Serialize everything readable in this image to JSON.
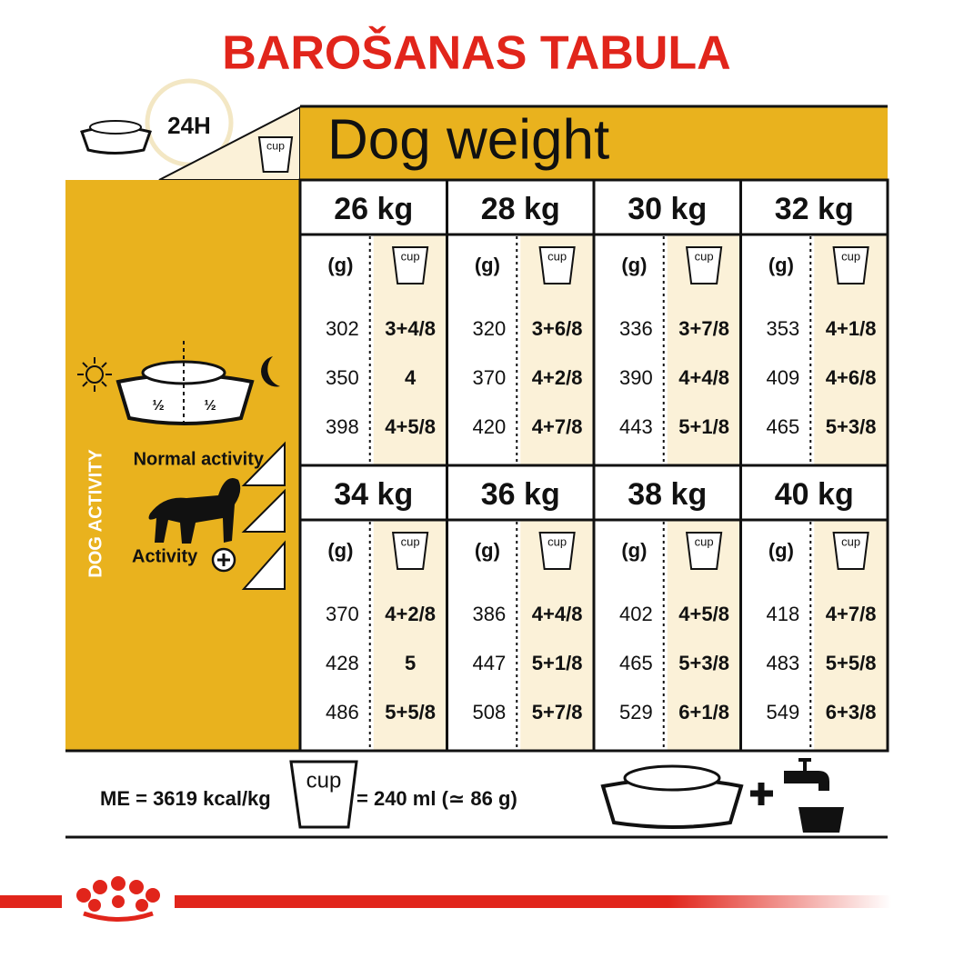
{
  "title": "BAROŠANAS TABULA",
  "header": {
    "period": "24H",
    "heading": "Dog weight"
  },
  "cup_label": "cup",
  "activity": {
    "side_label": "DOG ACTIVITY",
    "half_label": "½",
    "levels": [
      "Normal activity",
      "Activity"
    ]
  },
  "table": {
    "gram_label": "(g)",
    "blocks": [
      {
        "weight": "26 kg",
        "rows": [
          [
            "302",
            "3+4/8"
          ],
          [
            "350",
            "4"
          ],
          [
            "398",
            "4+5/8"
          ]
        ]
      },
      {
        "weight": "28 kg",
        "rows": [
          [
            "320",
            "3+6/8"
          ],
          [
            "370",
            "4+2/8"
          ],
          [
            "420",
            "4+7/8"
          ]
        ]
      },
      {
        "weight": "30 kg",
        "rows": [
          [
            "336",
            "3+7/8"
          ],
          [
            "390",
            "4+4/8"
          ],
          [
            "443",
            "5+1/8"
          ]
        ]
      },
      {
        "weight": "32 kg",
        "rows": [
          [
            "353",
            "4+1/8"
          ],
          [
            "409",
            "4+6/8"
          ],
          [
            "465",
            "5+3/8"
          ]
        ]
      },
      {
        "weight": "34 kg",
        "rows": [
          [
            "370",
            "4+2/8"
          ],
          [
            "428",
            "5"
          ],
          [
            "486",
            "5+5/8"
          ]
        ]
      },
      {
        "weight": "36 kg",
        "rows": [
          [
            "386",
            "4+4/8"
          ],
          [
            "447",
            "5+1/8"
          ],
          [
            "508",
            "5+7/8"
          ]
        ]
      },
      {
        "weight": "38 kg",
        "rows": [
          [
            "402",
            "4+5/8"
          ],
          [
            "465",
            "5+3/8"
          ],
          [
            "529",
            "6+1/8"
          ]
        ]
      },
      {
        "weight": "40 kg",
        "rows": [
          [
            "418",
            "4+7/8"
          ],
          [
            "483",
            "5+5/8"
          ],
          [
            "549",
            "6+3/8"
          ]
        ]
      }
    ]
  },
  "footer": {
    "energy": "ME = 3619 kcal/kg",
    "cup_equivalent": "= 240 ml (≃ 86 g)"
  }
}
